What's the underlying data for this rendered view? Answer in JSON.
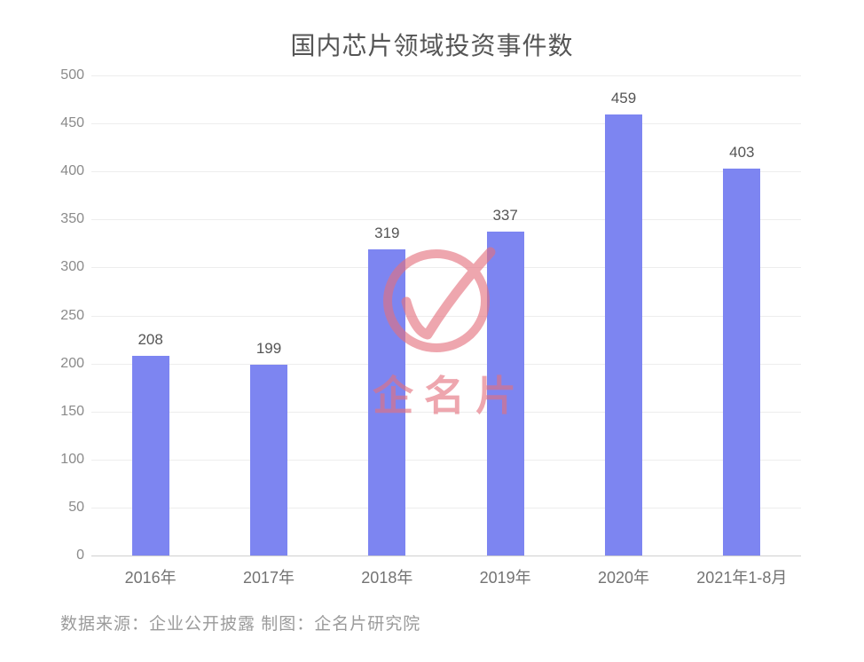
{
  "title": "国内芯片领域投资事件数",
  "watermark": {
    "logo_icon": "circle-checkmark",
    "text": "企名片",
    "color": "#e4717e"
  },
  "footer": "数据来源：企业公开披露 制图：企名片研究院",
  "colors": {
    "bar": "#7d85f1",
    "gridline": "#ededed",
    "axis_baseline": "#cfcfcf",
    "title_text": "#555555",
    "tick_text": "#8a8a8a",
    "category_text": "#737373",
    "value_text": "#555555",
    "footer_text": "#9b9b9b",
    "watermark_pink": "#e4717e",
    "background": "#ffffff"
  },
  "chart_data": {
    "type": "bar",
    "title": "国内芯片领域投资事件数",
    "categories": [
      "2016年",
      "2017年",
      "2018年",
      "2019年",
      "2020年",
      "2021年1-8月"
    ],
    "values": [
      208,
      199,
      319,
      337,
      459,
      403
    ],
    "xlabel": "",
    "ylabel": "",
    "ylim": [
      0,
      500
    ],
    "ytick_step": 50,
    "yticks": [
      0,
      50,
      100,
      150,
      200,
      250,
      300,
      350,
      400,
      450,
      500
    ],
    "grid": true,
    "legend": false,
    "bar_color": "#7d85f1",
    "value_labels_shown": true
  }
}
